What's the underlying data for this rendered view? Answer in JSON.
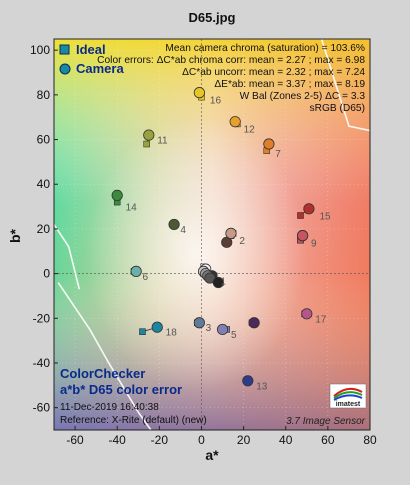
{
  "chart_data": {
    "type": "scatter",
    "title": "D65.jpg",
    "xlabel": "a*",
    "ylabel": "b*",
    "xlim": [
      -70,
      80
    ],
    "ylim": [
      -70,
      105
    ],
    "xticks": [
      -60,
      -40,
      -20,
      0,
      20,
      40,
      60,
      80
    ],
    "yticks": [
      -60,
      -40,
      -20,
      0,
      20,
      40,
      60,
      80,
      100
    ],
    "grid": true,
    "legend": {
      "position": "top-left",
      "entries": [
        "Ideal",
        "Camera"
      ]
    },
    "stats": [
      "Mean camera chroma (saturation) = 103.6%",
      "Color errors: ΔC*ab chroma corr:  mean = 2.27 ;  max = 6.98",
      "ΔC*ab uncorr:  mean = 2.32 ;  max = 7.24",
      "ΔE*ab:  mean = 3.37 ;  max = 8.19",
      "W Bal (Zones 2-5) ΔC = 3.3",
      "sRGB (D65)"
    ],
    "info": {
      "line1": "ColorChecker",
      "line2": "a*b* D65 color error",
      "line3": "11-Dec-2019 16:40:38",
      "line4": "Reference: X-Rite (default) (new)"
    },
    "brand": "3.7  Image Sensor",
    "logo_text": "imatest",
    "patches": [
      {
        "id": "1",
        "ideal": [
          6,
          -1
        ],
        "camera": [
          5,
          -1
        ],
        "color": "#3a2f32"
      },
      {
        "id": "2",
        "ideal": [
          14,
          17
        ],
        "camera": [
          12,
          14
        ],
        "color": "#5a3e33"
      },
      {
        "id": "2b",
        "ideal": [
          15,
          18
        ],
        "camera": [
          14,
          18
        ],
        "color": "#c69a86"
      },
      {
        "id": "3",
        "ideal": [
          -2,
          -22
        ],
        "camera": [
          -1,
          -22
        ],
        "color": "#5f7b99"
      },
      {
        "id": "4",
        "ideal": [
          -13,
          22
        ],
        "camera": [
          -13,
          22
        ],
        "color": "#4b5a33"
      },
      {
        "id": "5",
        "ideal": [
          12,
          -25
        ],
        "camera": [
          10,
          -25
        ],
        "color": "#7f7fb1"
      },
      {
        "id": "6",
        "ideal": [
          -32,
          1
        ],
        "camera": [
          -31,
          1
        ],
        "color": "#6ab0a9"
      },
      {
        "id": "7",
        "ideal": [
          31,
          55
        ],
        "camera": [
          32,
          58
        ],
        "color": "#e07f2b"
      },
      {
        "id": "8",
        "ideal": [
          47,
          15
        ],
        "camera": [
          48,
          17
        ],
        "color": "#c8545f"
      },
      {
        "id": "9",
        "ideal": [
          47,
          15
        ],
        "camera": [
          48,
          17
        ],
        "color": "#c8545f"
      },
      {
        "id": "10",
        "ideal": [
          24,
          -22
        ],
        "camera": [
          25,
          -22
        ],
        "color": "#4a2a5a"
      },
      {
        "id": "11",
        "ideal": [
          -26,
          58
        ],
        "camera": [
          -25,
          62
        ],
        "color": "#9aa23e"
      },
      {
        "id": "12",
        "ideal": [
          17,
          67
        ],
        "camera": [
          16,
          68
        ],
        "color": "#e7a12a"
      },
      {
        "id": "13",
        "ideal": [
          22,
          -48
        ],
        "camera": [
          22,
          -48
        ],
        "color": "#2a3c8a"
      },
      {
        "id": "14",
        "ideal": [
          -40,
          32
        ],
        "camera": [
          -40,
          35
        ],
        "color": "#3b8a3f"
      },
      {
        "id": "15",
        "ideal": [
          47,
          26
        ],
        "camera": [
          51,
          29
        ],
        "color": "#b0302e"
      },
      {
        "id": "16",
        "ideal": [
          0,
          79
        ],
        "camera": [
          -1,
          81
        ],
        "color": "#e8c527"
      },
      {
        "id": "17",
        "ideal": [
          49,
          -18
        ],
        "camera": [
          50,
          -18
        ],
        "color": "#b6558a"
      },
      {
        "id": "18",
        "ideal": [
          -28,
          -26
        ],
        "camera": [
          -21,
          -24
        ],
        "color": "#1c86a2"
      },
      {
        "id": "19",
        "ideal": [
          1,
          3
        ],
        "camera": [
          2,
          2
        ],
        "color": "#f3f3f3"
      },
      {
        "id": "20",
        "ideal": [
          1,
          0
        ],
        "camera": [
          1,
          1
        ],
        "color": "#c8c8c8"
      },
      {
        "id": "21",
        "ideal": [
          2,
          0
        ],
        "camera": [
          2,
          0
        ],
        "color": "#a0a0a0"
      },
      {
        "id": "22",
        "ideal": [
          3,
          -1
        ],
        "camera": [
          3,
          -1
        ],
        "color": "#7a7a7a"
      },
      {
        "id": "23",
        "ideal": [
          4,
          -2
        ],
        "camera": [
          4,
          -2
        ],
        "color": "#555555"
      },
      {
        "id": "24",
        "ideal": [
          9,
          -4
        ],
        "camera": [
          8,
          -4
        ],
        "color": "#222222"
      }
    ],
    "patch_labels": [
      {
        "text": "1",
        "at": [
          9,
          -3
        ]
      },
      {
        "text": "2",
        "at": [
          18,
          15
        ]
      },
      {
        "text": "3",
        "at": [
          2,
          -24
        ]
      },
      {
        "text": "4",
        "at": [
          -10,
          20
        ]
      },
      {
        "text": "5",
        "at": [
          14,
          -27
        ]
      },
      {
        "text": "6",
        "at": [
          -28,
          -1
        ]
      },
      {
        "text": "7",
        "at": [
          35,
          54
        ]
      },
      {
        "text": "9",
        "at": [
          52,
          14
        ]
      },
      {
        "text": "11",
        "at": [
          -21,
          60
        ]
      },
      {
        "text": "12",
        "at": [
          20,
          65
        ]
      },
      {
        "text": "13",
        "at": [
          26,
          -50
        ]
      },
      {
        "text": "14",
        "at": [
          -36,
          30
        ]
      },
      {
        "text": "15",
        "at": [
          56,
          26
        ]
      },
      {
        "text": "16",
        "at": [
          4,
          78
        ]
      },
      {
        "text": "17",
        "at": [
          54,
          -20
        ]
      },
      {
        "text": "18",
        "at": [
          -17,
          -26
        ]
      }
    ],
    "gamut_boundary": [
      [
        -58,
        -7
      ],
      [
        -63,
        12
      ],
      [
        -70,
        22
      ]
    ],
    "gamut_boundary_lower": [
      [
        -68,
        -4
      ],
      [
        -53,
        -25
      ],
      [
        -44,
        -40
      ],
      [
        -30,
        -62
      ],
      [
        -24,
        -70
      ]
    ],
    "gamut_top": [
      [
        57,
        105
      ],
      [
        70,
        66
      ],
      [
        80,
        64
      ]
    ]
  }
}
